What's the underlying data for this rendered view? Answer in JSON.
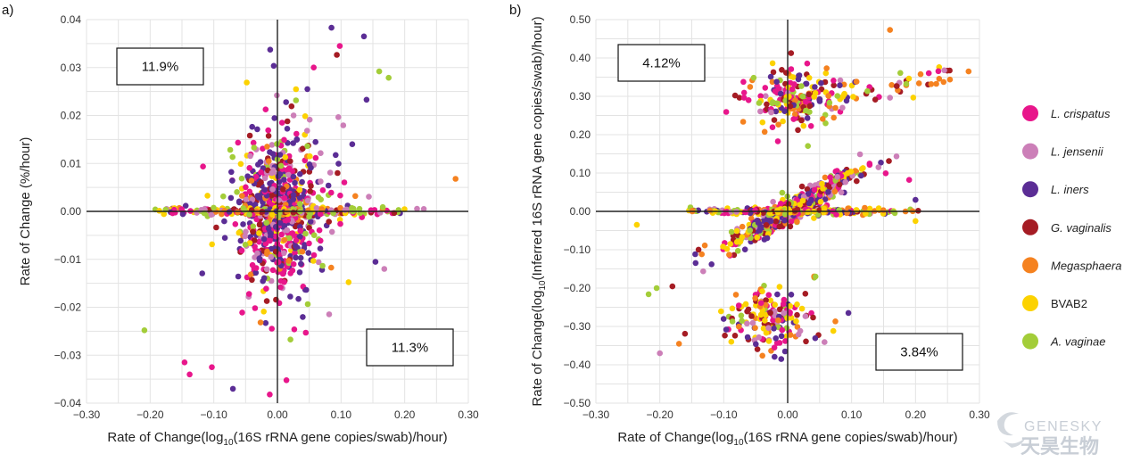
{
  "chart_data": [
    {
      "type": "scatter",
      "panel_label": "a)",
      "xlabel": "Rate of Change(log10(16S rRNA gene copies/swab)/hour)",
      "xlabel_parts": [
        "Rate of Change(log",
        "10",
        "(16S rRNA gene copies/swab)/hour)"
      ],
      "ylabel": "Rate of Change (%/hour)",
      "xlim": [
        -0.3,
        0.3
      ],
      "ylim": [
        -0.04,
        0.04
      ],
      "xticks": [
        "−0.30",
        "−0.20",
        "−0.10",
        "0.00",
        "0.10",
        "0.20",
        "0.30"
      ],
      "yticks": [
        "−0.04",
        "−0.03",
        "−0.02",
        "−0.01",
        "0.00",
        "0.01",
        "0.02",
        "0.03",
        "0.04"
      ],
      "grid": true,
      "annotations": [
        {
          "text": "11.9%",
          "quadrant": "top-left"
        },
        {
          "text": "11.3%",
          "quadrant": "bottom-right"
        }
      ]
    },
    {
      "type": "scatter",
      "panel_label": "b)",
      "xlabel": "Rate of Change(log10(16S rRNA gene copies/swab)/hour)",
      "xlabel_parts": [
        "Rate of Change(log",
        "10",
        "(16S rRNA gene copies/swab)/hour)"
      ],
      "ylabel": "Rate of Change(log10(Inferred 16S rRNA gene copies/swab)/hour)",
      "ylabel_parts": [
        "Rate of Change(log",
        "10",
        "(Inferred 16S rRNA gene copies/swab)/hour)"
      ],
      "xlim": [
        -0.3,
        0.3
      ],
      "ylim": [
        -0.5,
        0.5
      ],
      "xticks": [
        "−0.30",
        "−0.20",
        "−0.10",
        "0.00",
        "0.10",
        "0.20",
        "0.30"
      ],
      "yticks": [
        "−0.50",
        "−0.40",
        "−0.30",
        "−0.20",
        "−0.10",
        "0.00",
        "0.10",
        "0.20",
        "0.30",
        "0.40",
        "0.50"
      ],
      "grid": true,
      "annotations": [
        {
          "text": "4.12%",
          "quadrant": "top-left"
        },
        {
          "text": "3.84%",
          "quadrant": "bottom-right"
        }
      ]
    }
  ],
  "legend": {
    "placement": "right",
    "items": [
      {
        "label": "L. crispatus",
        "color": "#e8168b",
        "italic": true
      },
      {
        "label": "L. jensenii",
        "color": "#cc7fb8",
        "italic": true
      },
      {
        "label": "L. iners",
        "color": "#5b2d95",
        "italic": true
      },
      {
        "label": "G. vaginalis",
        "color": "#a51c24",
        "italic": true
      },
      {
        "label": "Megasphaera",
        "color": "#f58220",
        "italic": true
      },
      {
        "label": "BVAB2",
        "color": "#fcd200",
        "italic": false
      },
      {
        "label": "A. vaginae",
        "color": "#a3cd39",
        "italic": true
      }
    ]
  },
  "watermark": {
    "latin": "GENESKY",
    "cjk": "天昊生物"
  }
}
